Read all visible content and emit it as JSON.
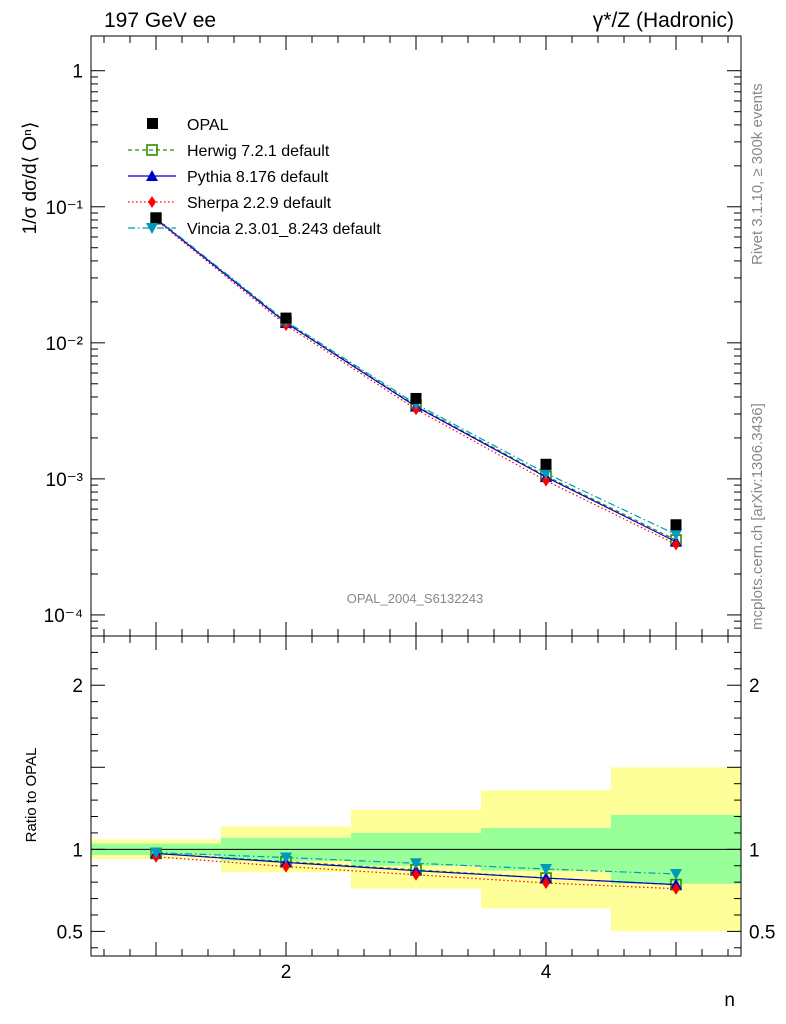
{
  "header": {
    "left_title": "197 GeV ee",
    "right_title": "γ*/Z (Hadronic)"
  },
  "side_labels": {
    "rivet": "Rivet 3.1.10, ≥ 300k events",
    "mcplots": "mcplots.cern.ch [arXiv:1306.3436]"
  },
  "analysis_id": "OPAL_2004_S6132243",
  "colors": {
    "data": "#000000",
    "herwig": "#2e8b00",
    "pythia": "#0000cc",
    "sherpa": "#ff0000",
    "vincia": "#0099bb",
    "band_inner": "#99ff99",
    "band_outer": "#ffff99"
  },
  "chart_data": [
    {
      "type": "line",
      "scale": "log",
      "ylabel": "1/σ dσ/d⟨ Oⁿ⟩",
      "xlabel": "n",
      "xlim": [
        0.5,
        5.5
      ],
      "ylim": [
        7e-05,
        1.8
      ],
      "y_ticks": [
        {
          "value": 1,
          "label": "1"
        },
        {
          "value": 0.1,
          "label": "10⁻¹"
        },
        {
          "value": 0.01,
          "label": "10⁻²"
        },
        {
          "value": 0.001,
          "label": "10⁻³"
        },
        {
          "value": 0.0001,
          "label": "10⁻⁴"
        }
      ],
      "x": [
        1,
        2,
        3,
        4,
        5
      ],
      "data_points": {
        "name": "OPAL",
        "values": [
          0.083,
          0.0152,
          0.0039,
          0.00128,
          0.00046
        ]
      },
      "series": [
        {
          "name": "Herwig 7.2.1 default",
          "key": "herwig",
          "marker": "open-square",
          "dash": "4,3",
          "values": [
            0.0815,
            0.0142,
            0.00345,
            0.00105,
            0.000355
          ]
        },
        {
          "name": "Pythia 8.176 default",
          "key": "pythia",
          "marker": "triangle-up",
          "dash": "",
          "values": [
            0.0815,
            0.014,
            0.0034,
            0.00103,
            0.000345
          ]
        },
        {
          "name": "Sherpa 2.2.9 default",
          "key": "sherpa",
          "marker": "diamond",
          "dash": "1.5,2.5",
          "values": [
            0.08,
            0.0135,
            0.00325,
            0.00097,
            0.00033
          ]
        },
        {
          "name": "Vincia 2.3.01_8.243 default",
          "key": "vincia",
          "marker": "triangle-down",
          "dash": "7,3,1.5,3",
          "values": [
            0.083,
            0.0144,
            0.00355,
            0.0011,
            0.00039
          ]
        }
      ],
      "legend_position": "top-left"
    },
    {
      "type": "line",
      "ylabel": "Ratio to OPAL",
      "xlabel": "n",
      "xlim": [
        0.5,
        5.5
      ],
      "ylim": [
        0.35,
        2.3
      ],
      "y_ticks": [
        {
          "value": 0.5,
          "label": "0.5"
        },
        {
          "value": 1,
          "label": "1"
        },
        {
          "value": 2,
          "label": "2"
        }
      ],
      "x_ticks": [
        {
          "value": 2,
          "label": "2"
        },
        {
          "value": 4,
          "label": "4"
        }
      ],
      "bands": [
        {
          "x0": 0.5,
          "x1": 1.5,
          "inner": [
            0.965,
            1.035
          ],
          "outer": [
            0.94,
            1.06
          ]
        },
        {
          "x0": 1.5,
          "x1": 2.5,
          "inner": [
            0.93,
            1.07
          ],
          "outer": [
            0.86,
            1.14
          ]
        },
        {
          "x0": 2.5,
          "x1": 3.5,
          "inner": [
            0.9,
            1.1
          ],
          "outer": [
            0.76,
            1.24
          ]
        },
        {
          "x0": 3.5,
          "x1": 4.5,
          "inner": [
            0.87,
            1.13
          ],
          "outer": [
            0.64,
            1.36
          ]
        },
        {
          "x0": 4.5,
          "x1": 5.5,
          "inner": [
            0.79,
            1.21
          ],
          "outer": [
            0.5,
            1.5
          ]
        }
      ],
      "x": [
        1,
        2,
        3,
        4,
        5
      ],
      "series": [
        {
          "name": "Herwig 7.2.1 default",
          "key": "herwig",
          "marker": "open-square",
          "dash": "4,3",
          "values": [
            0.975,
            0.925,
            0.875,
            0.825,
            0.785
          ]
        },
        {
          "name": "Pythia 8.176 default",
          "key": "pythia",
          "marker": "triangle-up",
          "dash": "",
          "values": [
            0.975,
            0.92,
            0.87,
            0.825,
            0.785
          ]
        },
        {
          "name": "Sherpa 2.2.9 default",
          "key": "sherpa",
          "marker": "diamond",
          "dash": "1.5,2.5",
          "values": [
            0.955,
            0.895,
            0.845,
            0.795,
            0.76
          ]
        },
        {
          "name": "Vincia 2.3.01_8.243 default",
          "key": "vincia",
          "marker": "triangle-down",
          "dash": "7,3,1.5,3",
          "values": [
            0.98,
            0.95,
            0.915,
            0.88,
            0.85
          ]
        }
      ]
    }
  ]
}
